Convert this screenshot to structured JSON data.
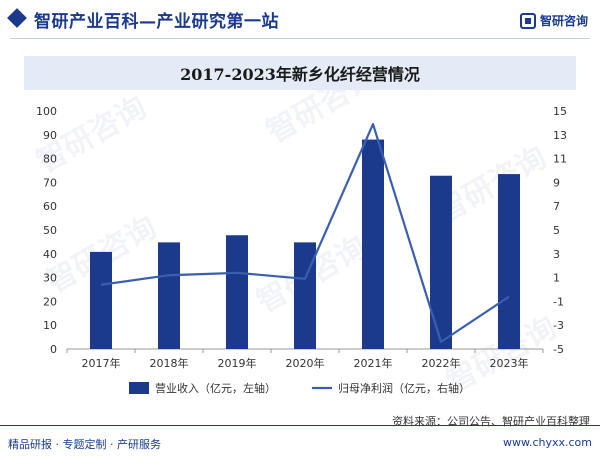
{
  "header": {
    "site_title": "智研产业百科—产业研究第一站",
    "brand": "智研咨询"
  },
  "footer": {
    "left": "精品研报 · 专题定制 · 产研服务",
    "source": "资料来源：公司公告、智研产业百科整理",
    "url": "www.chyxx.com"
  },
  "watermark": "智研咨询",
  "colors": {
    "bar": "#1b3a8c",
    "line": "#3a5fb0",
    "axis": "#999999"
  },
  "chart_data": {
    "type": "bar",
    "title": "2017-2023年新乡化纤经营情况",
    "categories": [
      "2017年",
      "2018年",
      "2019年",
      "2020年",
      "2021年",
      "2022年",
      "2023年"
    ],
    "series": [
      {
        "name": "营业收入（亿元，左轴）",
        "type": "bar",
        "axis": "left",
        "values": [
          40.8,
          44.8,
          47.8,
          44.8,
          88.0,
          72.8,
          73.5
        ]
      },
      {
        "name": "归母净利润（亿元，右轴）",
        "type": "line",
        "axis": "right",
        "values": [
          0.4,
          1.2,
          1.4,
          0.9,
          13.9,
          -4.4,
          -0.6
        ]
      }
    ],
    "y_left": {
      "min": 0,
      "max": 100,
      "ticks": [
        "0",
        "10",
        "20",
        "30",
        "40",
        "50",
        "60",
        "70",
        "80",
        "90",
        "100"
      ]
    },
    "y_right": {
      "min": -5,
      "max": 15,
      "ticks": [
        "-5",
        "-3",
        "-1",
        "1",
        "3",
        "5",
        "7",
        "9",
        "11",
        "13",
        "15"
      ]
    },
    "grid": false,
    "legend_position": "bottom"
  }
}
